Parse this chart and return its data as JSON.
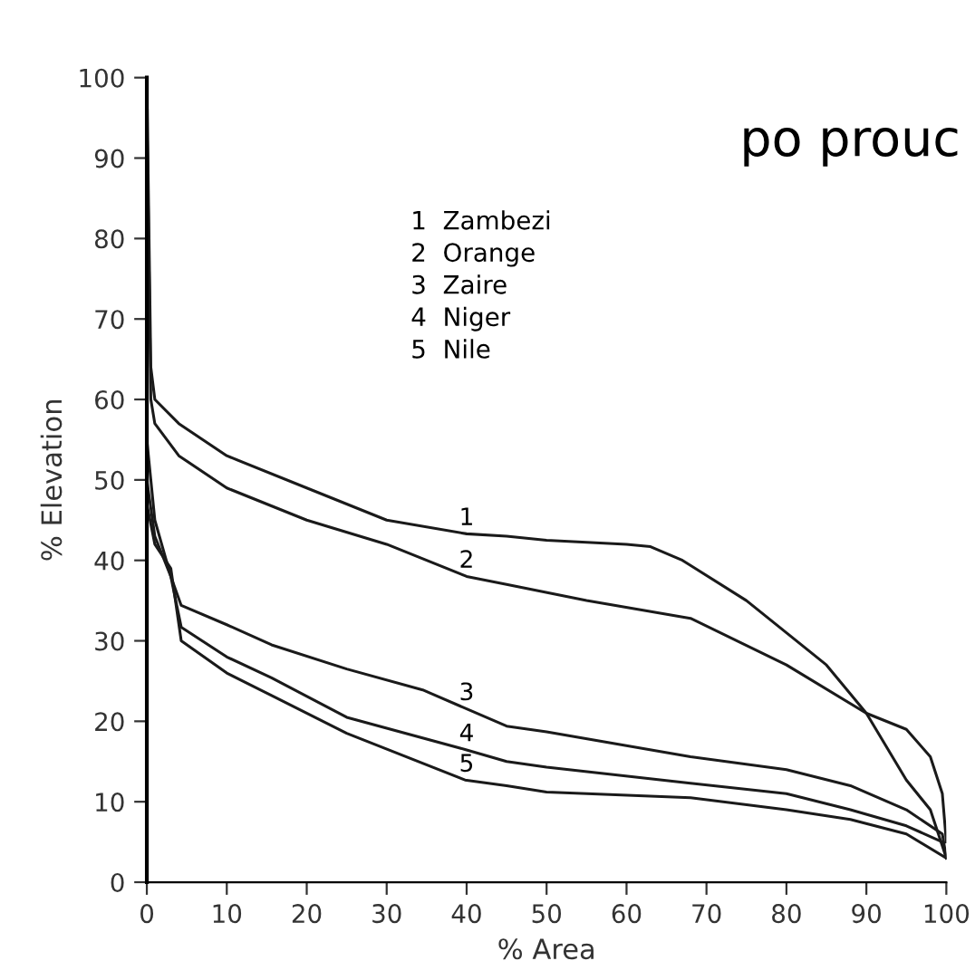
{
  "chart_data": {
    "type": "line",
    "xlabel": "% Area",
    "ylabel": "% Elevation",
    "xlim": [
      0,
      100
    ],
    "ylim": [
      0,
      100
    ],
    "xticks": [
      0,
      10,
      20,
      30,
      40,
      50,
      60,
      70,
      80,
      90,
      100
    ],
    "yticks": [
      0,
      10,
      20,
      30,
      40,
      50,
      60,
      70,
      80,
      90,
      100
    ],
    "grid": false,
    "legend": false,
    "marker": "none",
    "line_style": "solid",
    "series": [
      {
        "name": "1",
        "color": "#1a1a1a",
        "x": [
          0,
          0.5,
          1,
          4,
          10,
          20,
          30,
          40,
          45,
          50,
          60,
          63,
          67,
          75,
          80,
          85,
          90,
          95,
          98,
          100
        ],
        "values": [
          100,
          64,
          60,
          57,
          53,
          49,
          45,
          43.3,
          43,
          42.5,
          42,
          41.7,
          40,
          35,
          31,
          27,
          21,
          12.7,
          9,
          3
        ]
      },
      {
        "name": "2",
        "color": "#1a1a1a",
        "x": [
          0,
          0.5,
          1,
          4,
          10,
          20,
          30,
          40,
          45,
          55,
          68,
          80,
          90,
          95,
          98,
          99.5,
          100
        ],
        "values": [
          96,
          60,
          57,
          53,
          49,
          45,
          42,
          38,
          37,
          35,
          32.8,
          27,
          21,
          19,
          15.6,
          11,
          5
        ]
      },
      {
        "name": "3",
        "color": "#1a1a1a",
        "x": [
          0,
          1,
          3,
          4.3,
          10,
          15.6,
          25,
          34.5,
          45,
          50,
          68,
          80,
          88,
          95,
          99.5,
          100
        ],
        "values": [
          55,
          45,
          38,
          34.4,
          32,
          29.5,
          26.5,
          23.9,
          19.4,
          18.7,
          15.6,
          14,
          12,
          9,
          6,
          3
        ]
      },
      {
        "name": "4",
        "color": "#1a1a1a",
        "x": [
          0,
          1,
          3,
          4.3,
          10,
          15.6,
          25,
          39.8,
          45,
          50,
          68,
          80,
          88,
          95,
          99.5,
          100
        ],
        "values": [
          50,
          43,
          38,
          31.7,
          28,
          25.4,
          20.5,
          16.5,
          15,
          14.3,
          12.3,
          11,
          9,
          7,
          5,
          3
        ]
      },
      {
        "name": "5",
        "color": "#1a1a1a",
        "x": [
          0,
          1,
          3,
          4.3,
          10,
          15.6,
          25,
          39.8,
          45,
          50,
          68,
          80,
          88,
          95,
          100
        ],
        "values": [
          47,
          42,
          39,
          30,
          26,
          23.2,
          18.5,
          12.7,
          12,
          11.2,
          10.5,
          9,
          7.8,
          6,
          3
        ]
      }
    ],
    "annotations": [
      "1  Zambezi",
      "2  Orange",
      "3  Zaire",
      "4  Niger",
      "5  Nile",
      "po prouc"
    ]
  }
}
